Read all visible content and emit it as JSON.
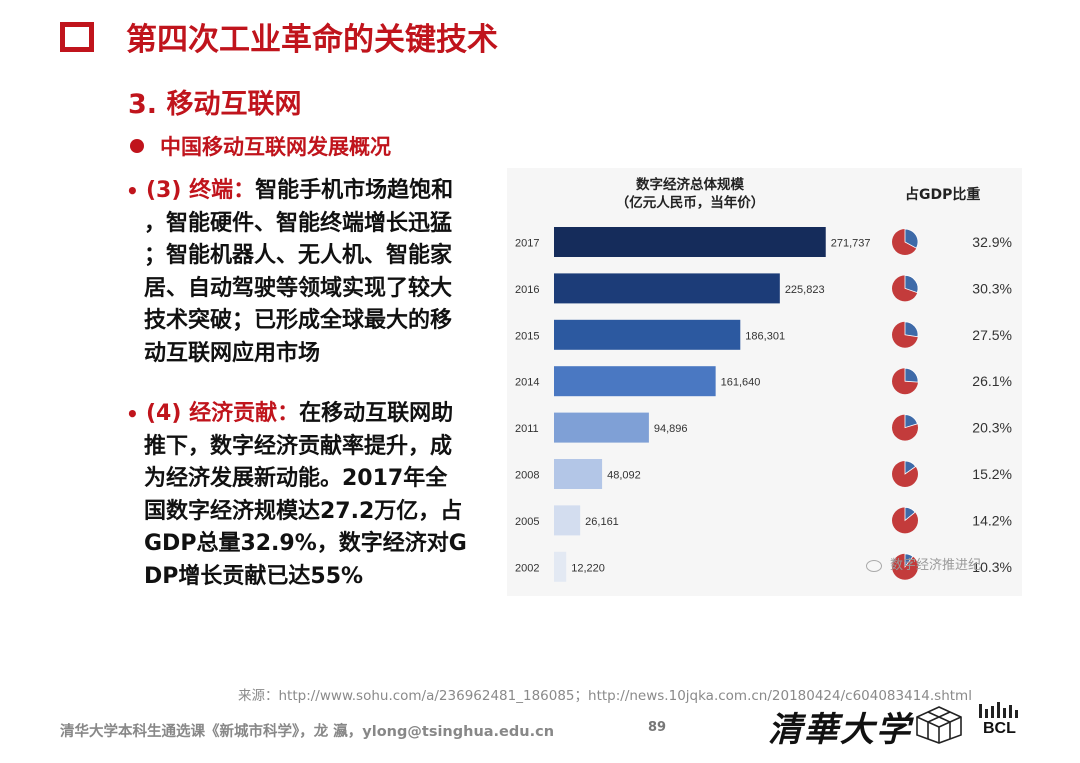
{
  "header": {
    "title": "第四次工业革命的关键技术",
    "subtitle": "3. 移动互联网",
    "bullet": "中国移动互联网发展概况"
  },
  "points": [
    {
      "marker": "•",
      "lines": [
        "(3) 终端：智能手机市场趋饱和",
        "，智能硬件、智能终端增长迅猛",
        "；智能机器人、无人机、智能家",
        "居、自动驾驶等领域实现了较大",
        "技术突破；已形成全球最大的移",
        "动互联网应用市场"
      ],
      "label": "(3) 终端：",
      "first_rest": "智能手机市场趋饱和"
    },
    {
      "marker": "•",
      "lines": [
        "(4) 经济贡献：在移动互联网助",
        "推下，数字经济贡献率提升，成",
        "为经济发展新动能。2017年全",
        "国数字经济规模达27.2万亿，占",
        "GDP总量32.9%，数字经济对G",
        "DP增长贡献已达55%"
      ],
      "label": "(4) 经济贡献：",
      "first_rest": "在移动互联网助"
    }
  ],
  "chart_data": {
    "type": "bar",
    "orientation": "horizontal",
    "title": "数字经济总体规模",
    "subtitle": "（亿元人民币，当年价）",
    "gdp_title": "占GDP比重",
    "categories": [
      "2017",
      "2016",
      "2015",
      "2014",
      "2011",
      "2008",
      "2005",
      "2002"
    ],
    "values": [
      271737,
      225823,
      186301,
      161640,
      94896,
      48092,
      26161,
      12220
    ],
    "value_labels": [
      "271,737",
      "225,823",
      "186,301",
      "161,640",
      "94,896",
      "48,092",
      "26,161",
      "12,220"
    ],
    "gdp_share": [
      32.9,
      30.3,
      27.5,
      26.1,
      20.3,
      15.2,
      14.2,
      10.3
    ],
    "gdp_share_labels": [
      "32.9%",
      "30.3%",
      "27.5%",
      "26.1%",
      "20.3%",
      "15.2%",
      "14.2%",
      "10.3%"
    ],
    "xlim": [
      0,
      280000
    ],
    "bar_colors": [
      "#152c5b",
      "#1c3c78",
      "#2c59a0",
      "#4a78c2",
      "#7fa0d6",
      "#b3c6e7",
      "#d3ddef",
      "#e3e9f3"
    ],
    "pie_colors": {
      "share": "#3e6aa8",
      "rest": "#c33b3b"
    }
  },
  "watermark": "数字经济推进纪",
  "source": "来源：http://www.sohu.com/a/236962481_186085；http://news.10jqka.com.cn/20180424/c604083414.shtml",
  "footer": {
    "text": "清华大学本科生通选课《新城市科学》，龙 瀛，ylong@tsinghua.edu.cn",
    "page_number": "89",
    "logo_text": "清華大学",
    "bcl_text": "BCL"
  }
}
